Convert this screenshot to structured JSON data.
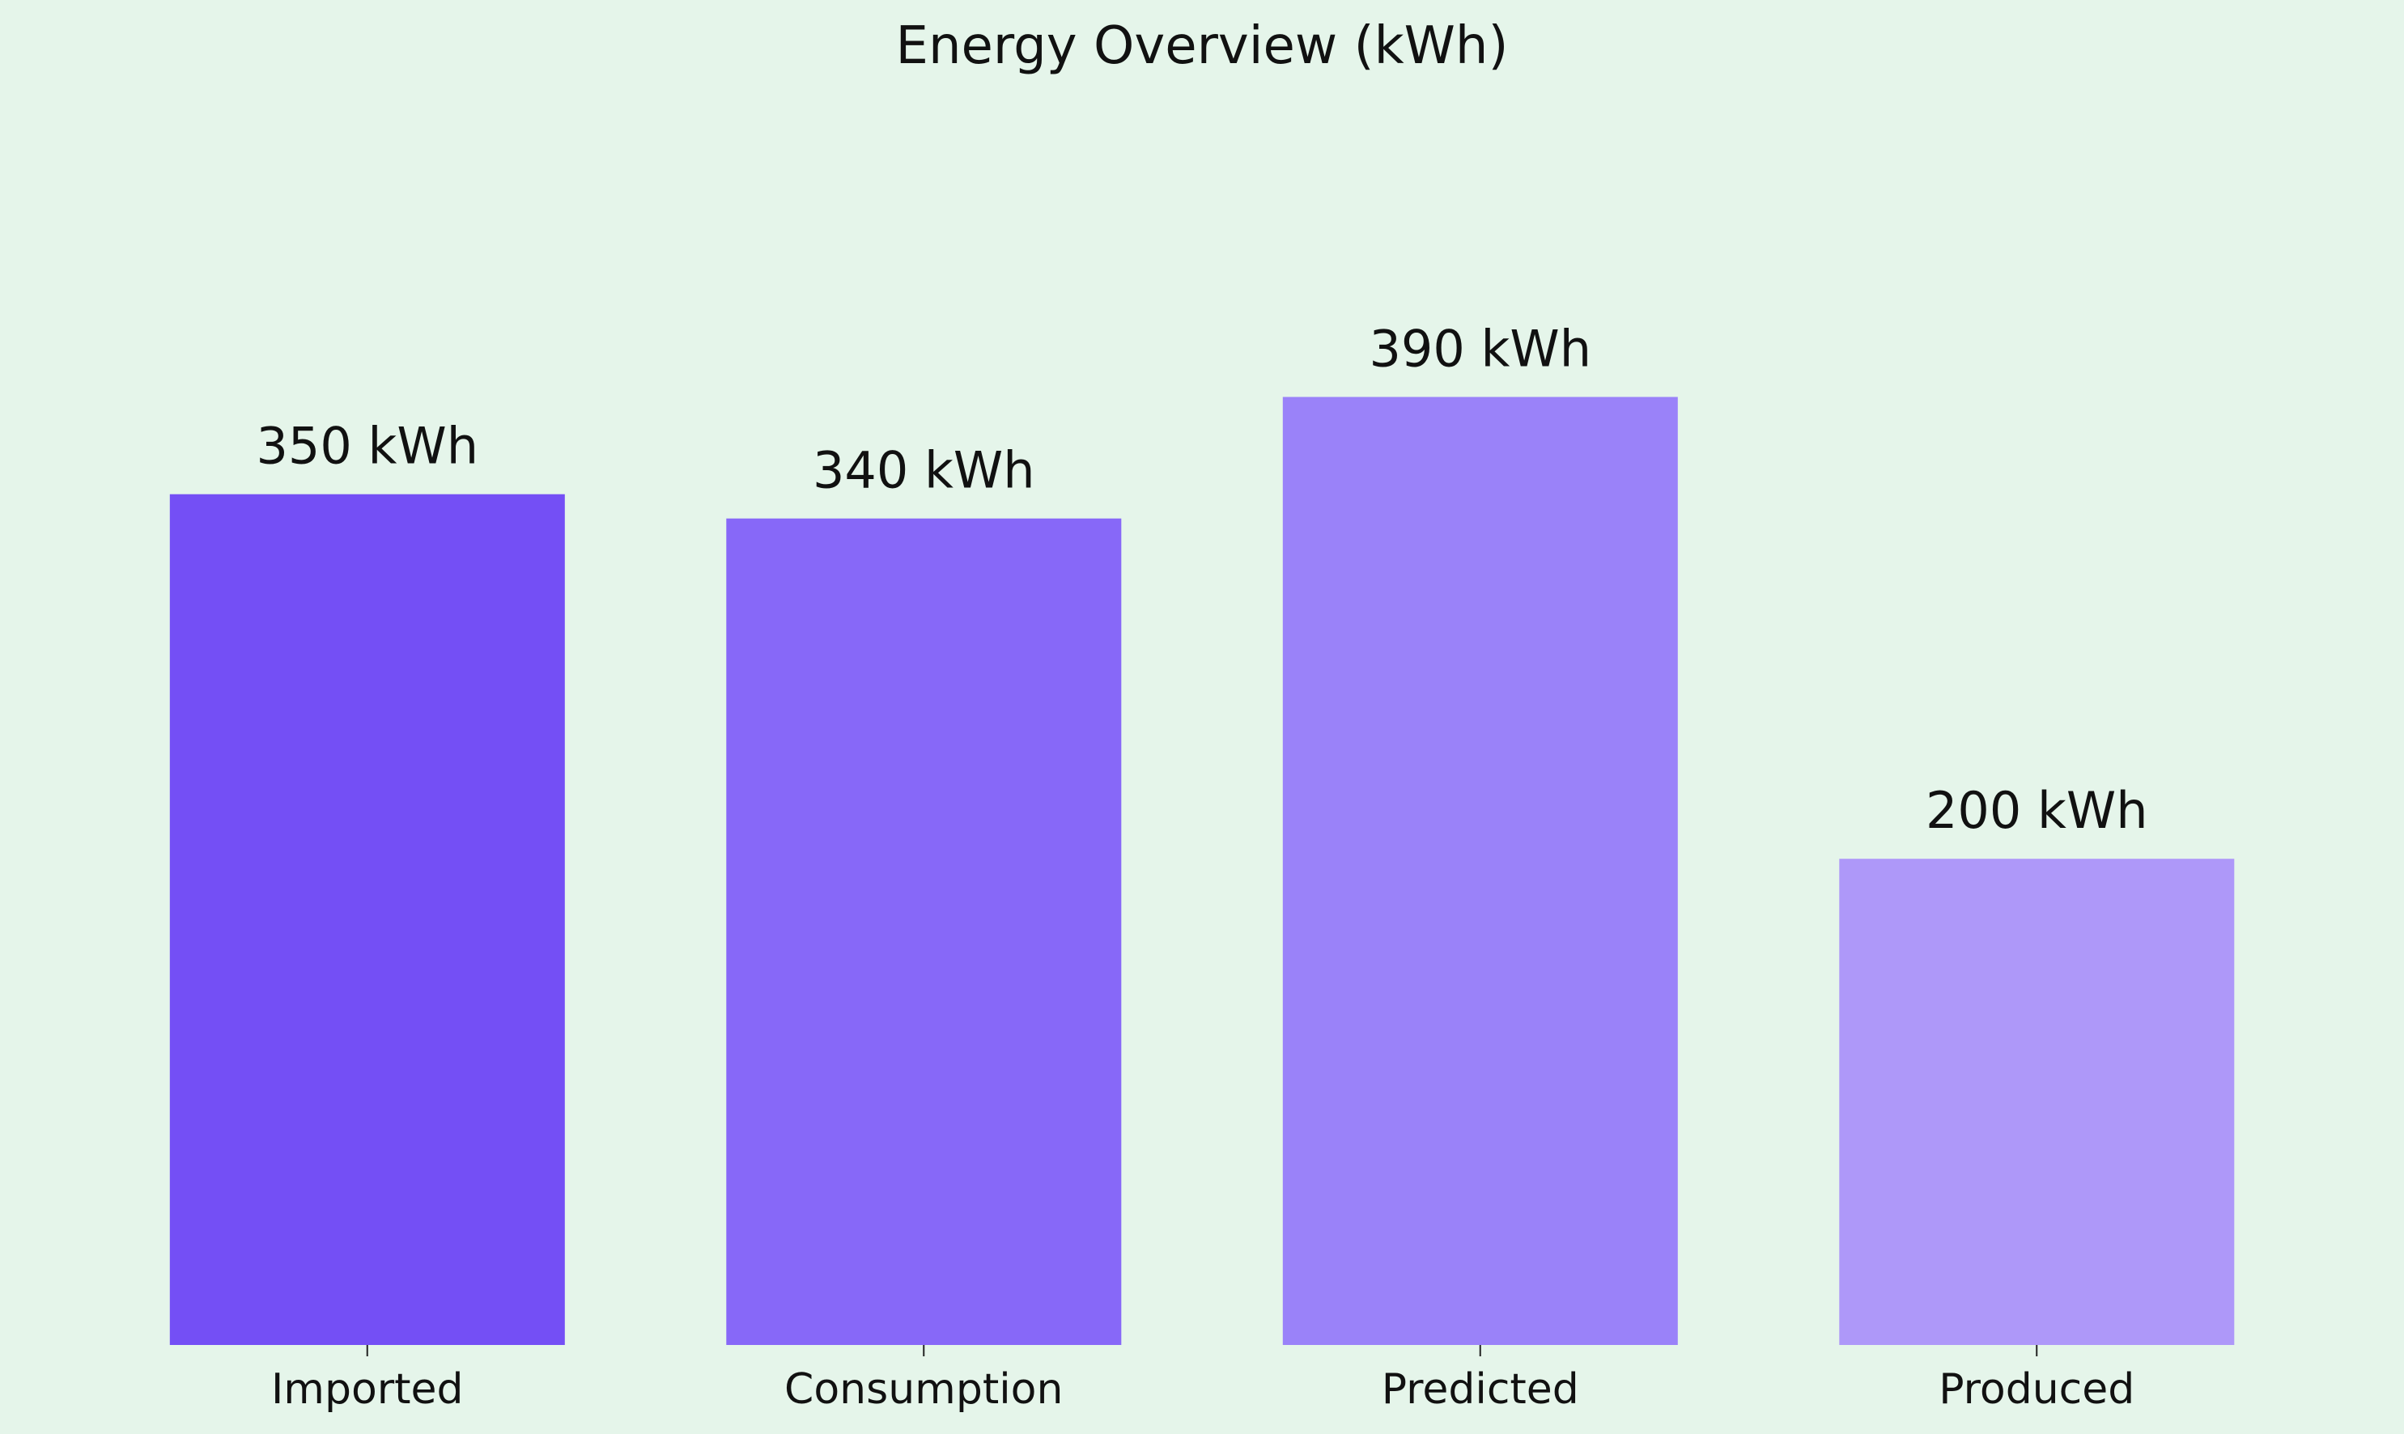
{
  "chart_data": {
    "type": "bar",
    "title": "Energy Overview (kWh)",
    "categories": [
      "Imported",
      "Consumption",
      "Predicted",
      "Produced"
    ],
    "values": [
      350,
      340,
      390,
      200
    ],
    "data_labels": [
      "350 kWh",
      "340 kWh",
      "390 kWh",
      "200 kWh"
    ],
    "bar_colors": [
      "#744ff5",
      "#8768f8",
      "#9a82f9",
      "#ae98f9"
    ],
    "background_color": "#e5f5ea",
    "ylim": [
      0,
      525
    ],
    "grid": false,
    "legend": "none",
    "y_axis_visible": false
  }
}
